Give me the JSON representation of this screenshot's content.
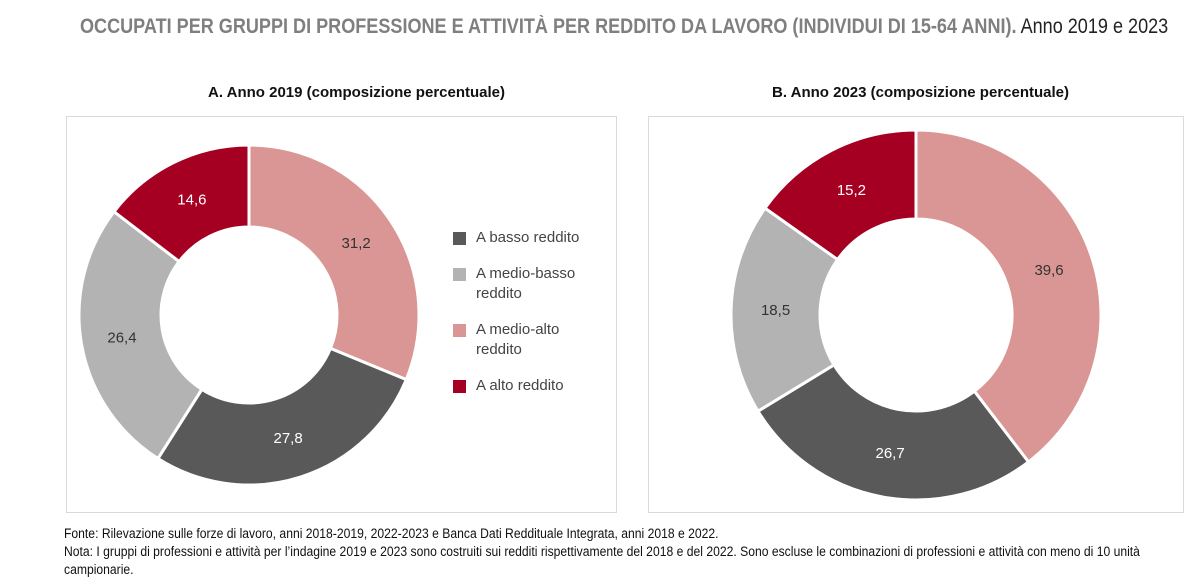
{
  "title": {
    "main": "OCCUPATI PER GRUPPI DI PROFESSIONE E ATTIVITÀ PER REDDITO DA LAVORO (INDIVIDUI DI 15-64 ANNI).",
    "sub": "Anno 2019 e 2023"
  },
  "legend": [
    "A basso reddito",
    "A medio-basso reddito",
    "A medio-alto reddito",
    "A alto reddito"
  ],
  "colors": {
    "A basso reddito": "#595959",
    "A medio-basso reddito": "#b3b3b3",
    "A medio-alto reddito": "#d99694",
    "A alto reddito": "#a50021"
  },
  "chart_data": [
    {
      "type": "pie",
      "donut": true,
      "title": "A.    Anno 2019 (composizione percentuale)",
      "start": "12 o'clock, clockwise",
      "slices": [
        {
          "name": "A medio-alto reddito",
          "value": 31.2,
          "label": "31,2"
        },
        {
          "name": "A basso reddito",
          "value": 27.8,
          "label": "27,8"
        },
        {
          "name": "A medio-basso reddito",
          "value": 26.4,
          "label": "26,4"
        },
        {
          "name": "A alto reddito",
          "value": 14.6,
          "label": "14,6"
        }
      ]
    },
    {
      "type": "pie",
      "donut": true,
      "title": "B.    Anno 2023 (composizione percentuale)",
      "start": "12 o'clock, clockwise",
      "slices": [
        {
          "name": "A medio-alto reddito",
          "value": 39.6,
          "label": "39,6"
        },
        {
          "name": "A basso reddito",
          "value": 26.7,
          "label": "26,7"
        },
        {
          "name": "A medio-basso reddito",
          "value": 18.5,
          "label": "18,5"
        },
        {
          "name": "A alto reddito",
          "value": 15.2,
          "label": "15,2"
        }
      ]
    }
  ],
  "footer": {
    "fonte": "Fonte: Rilevazione sulle forze di lavoro, anni 2018-2019, 2022-2023 e Banca Dati Reddituale Integrata, anni 2018 e 2022.",
    "nota": "Nota: I gruppi di professioni e attività per l’indagine 2019 e 2023 sono costruiti sui redditi rispettivamente del 2018 e del 2022.  Sono escluse le combinazioni di professioni e attività con meno di 10 unità campionarie."
  }
}
